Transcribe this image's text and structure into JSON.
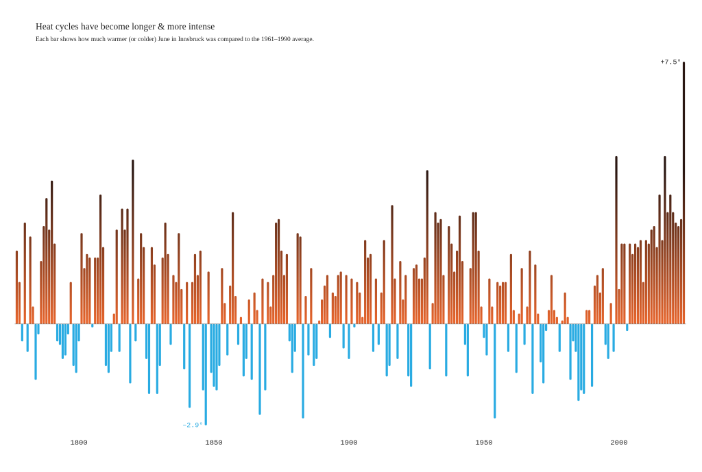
{
  "chart_data": {
    "type": "bar",
    "title": "Heat cycles have become longer & more intense",
    "subtitle": "Each bar shows how much warmer (or colder) June in Innsbruck was compared to the 1961–1990 average.",
    "x": [
      1777,
      1778,
      1779,
      1780,
      1781,
      1782,
      1783,
      1784,
      1785,
      1786,
      1787,
      1788,
      1789,
      1790,
      1791,
      1792,
      1793,
      1794,
      1795,
      1796,
      1797,
      1798,
      1799,
      1800,
      1801,
      1802,
      1803,
      1804,
      1805,
      1806,
      1807,
      1808,
      1809,
      1810,
      1811,
      1812,
      1813,
      1814,
      1815,
      1816,
      1817,
      1818,
      1819,
      1820,
      1821,
      1822,
      1823,
      1824,
      1825,
      1826,
      1827,
      1828,
      1829,
      1830,
      1831,
      1832,
      1833,
      1834,
      1835,
      1836,
      1837,
      1838,
      1839,
      1840,
      1841,
      1842,
      1843,
      1844,
      1845,
      1846,
      1847,
      1848,
      1849,
      1850,
      1851,
      1852,
      1853,
      1854,
      1855,
      1856,
      1857,
      1858,
      1859,
      1860,
      1861,
      1862,
      1863,
      1864,
      1865,
      1866,
      1867,
      1868,
      1869,
      1870,
      1871,
      1872,
      1873,
      1874,
      1875,
      1876,
      1877,
      1878,
      1879,
      1880,
      1881,
      1882,
      1883,
      1884,
      1885,
      1886,
      1887,
      1888,
      1889,
      1890,
      1891,
      1892,
      1893,
      1894,
      1895,
      1896,
      1897,
      1898,
      1899,
      1900,
      1901,
      1902,
      1903,
      1904,
      1905,
      1906,
      1907,
      1908,
      1909,
      1910,
      1911,
      1912,
      1913,
      1914,
      1915,
      1916,
      1917,
      1918,
      1919,
      1920,
      1921,
      1922,
      1923,
      1924,
      1925,
      1926,
      1927,
      1928,
      1929,
      1930,
      1931,
      1932,
      1933,
      1934,
      1935,
      1936,
      1937,
      1938,
      1939,
      1940,
      1941,
      1942,
      1943,
      1944,
      1945,
      1946,
      1947,
      1948,
      1949,
      1950,
      1951,
      1952,
      1953,
      1954,
      1955,
      1956,
      1957,
      1958,
      1959,
      1960,
      1961,
      1962,
      1963,
      1964,
      1965,
      1966,
      1967,
      1968,
      1969,
      1970,
      1971,
      1972,
      1973,
      1974,
      1975,
      1976,
      1977,
      1978,
      1979,
      1980,
      1981,
      1982,
      1983,
      1984,
      1985,
      1986,
      1987,
      1988,
      1989,
      1990,
      1991,
      1992,
      1993,
      1994,
      1995,
      1996,
      1997,
      1998,
      1999,
      2000,
      2001,
      2002,
      2003,
      2004,
      2005,
      2006,
      2007,
      2008,
      2009,
      2010,
      2011,
      2012,
      2013,
      2014,
      2015,
      2016,
      2017,
      2018,
      2019,
      2020,
      2021,
      2022,
      2023,
      2024
    ],
    "values": [
      2.1,
      1.2,
      -0.5,
      2.9,
      -0.8,
      2.5,
      0.5,
      -1.6,
      -0.3,
      1.8,
      2.8,
      3.6,
      2.7,
      4.1,
      2.3,
      -0.5,
      -0.6,
      -1.0,
      -0.9,
      -0.3,
      1.2,
      -1.2,
      -1.4,
      -0.5,
      2.6,
      1.6,
      2.0,
      1.9,
      -0.1,
      1.9,
      1.9,
      3.7,
      2.2,
      -1.2,
      -1.4,
      -0.8,
      0.3,
      2.7,
      -0.8,
      3.3,
      2.7,
      3.3,
      -1.7,
      4.7,
      -0.5,
      1.3,
      2.6,
      2.2,
      -1.0,
      -2.0,
      2.2,
      1.7,
      -2.0,
      -1.2,
      1.9,
      2.9,
      2.0,
      -0.6,
      1.4,
      1.2,
      2.6,
      1.0,
      -1.3,
      1.2,
      -2.4,
      1.2,
      2.0,
      1.4,
      2.1,
      -1.9,
      -2.9,
      1.5,
      -1.4,
      -1.8,
      -1.9,
      -1.2,
      1.6,
      0.6,
      -0.9,
      1.1,
      3.2,
      0.8,
      -0.6,
      0.2,
      -1.5,
      -1.0,
      0.7,
      -1.6,
      0.9,
      0.4,
      -2.6,
      1.3,
      -1.9,
      1.2,
      0.5,
      1.4,
      2.9,
      3.0,
      2.1,
      1.4,
      2.0,
      -0.5,
      -1.4,
      -0.8,
      2.6,
      2.5,
      -2.7,
      0.8,
      -0.9,
      1.6,
      -1.2,
      -1.0,
      0.1,
      0.7,
      1.1,
      1.4,
      -0.4,
      0.9,
      0.8,
      1.4,
      1.5,
      -0.7,
      1.4,
      -1.0,
      1.3,
      -0.1,
      1.2,
      0.9,
      0.2,
      2.4,
      1.9,
      2.0,
      -0.8,
      1.3,
      -0.6,
      0.9,
      2.4,
      -1.5,
      -1.2,
      3.4,
      1.3,
      -1.0,
      1.8,
      0.7,
      1.4,
      -1.5,
      -1.8,
      1.6,
      1.7,
      1.3,
      1.3,
      1.9,
      4.4,
      -1.3,
      0.6,
      3.2,
      2.9,
      3.0,
      1.4,
      -1.5,
      2.8,
      2.3,
      1.5,
      2.1,
      3.1,
      1.8,
      -0.6,
      -1.5,
      1.6,
      3.2,
      3.2,
      2.1,
      0.5,
      -0.4,
      -0.9,
      1.3,
      0.5,
      -2.7,
      1.2,
      1.1,
      1.2,
      1.2,
      -0.8,
      2.0,
      0.4,
      -1.4,
      0.3,
      1.6,
      -0.6,
      0.5,
      2.1,
      -2.0,
      1.7,
      0.3,
      -1.1,
      -1.7,
      -0.2,
      0.4,
      1.4,
      0.4,
      0.2,
      -0.8,
      0.1,
      0.9,
      0.2,
      -1.6,
      -0.5,
      -0.8,
      -2.2,
      -1.9,
      -2.0,
      0.4,
      0.4,
      -1.8,
      1.1,
      1.4,
      0.9,
      1.6,
      -0.6,
      -1.0,
      0.6,
      -0.8,
      4.8,
      1.0,
      2.3,
      2.3,
      -0.2,
      2.3,
      2.0,
      2.3,
      2.2,
      2.4,
      1.2,
      2.4,
      2.3,
      2.7,
      2.8,
      2.2,
      3.7,
      2.4,
      4.8,
      3.2,
      3.7,
      3.2,
      2.9,
      2.8,
      3.0,
      7.5
    ],
    "annotations": [
      {
        "text": "+7.5°",
        "x": 2024,
        "y": 7.5
      },
      {
        "text": "–2.9°",
        "x": 1847,
        "y": -2.9
      }
    ],
    "colors": {
      "warm_top": "#2a1712",
      "warm_bottom": "#e8652c",
      "cold": "#29abe2",
      "warm_label": "#222222"
    },
    "xlim": [
      1774.6,
      2025.9
    ],
    "xticks": [
      1800,
      1850,
      1900,
      1950,
      2000
    ],
    "ylim": [
      -3,
      7.6
    ],
    "grid": false
  }
}
